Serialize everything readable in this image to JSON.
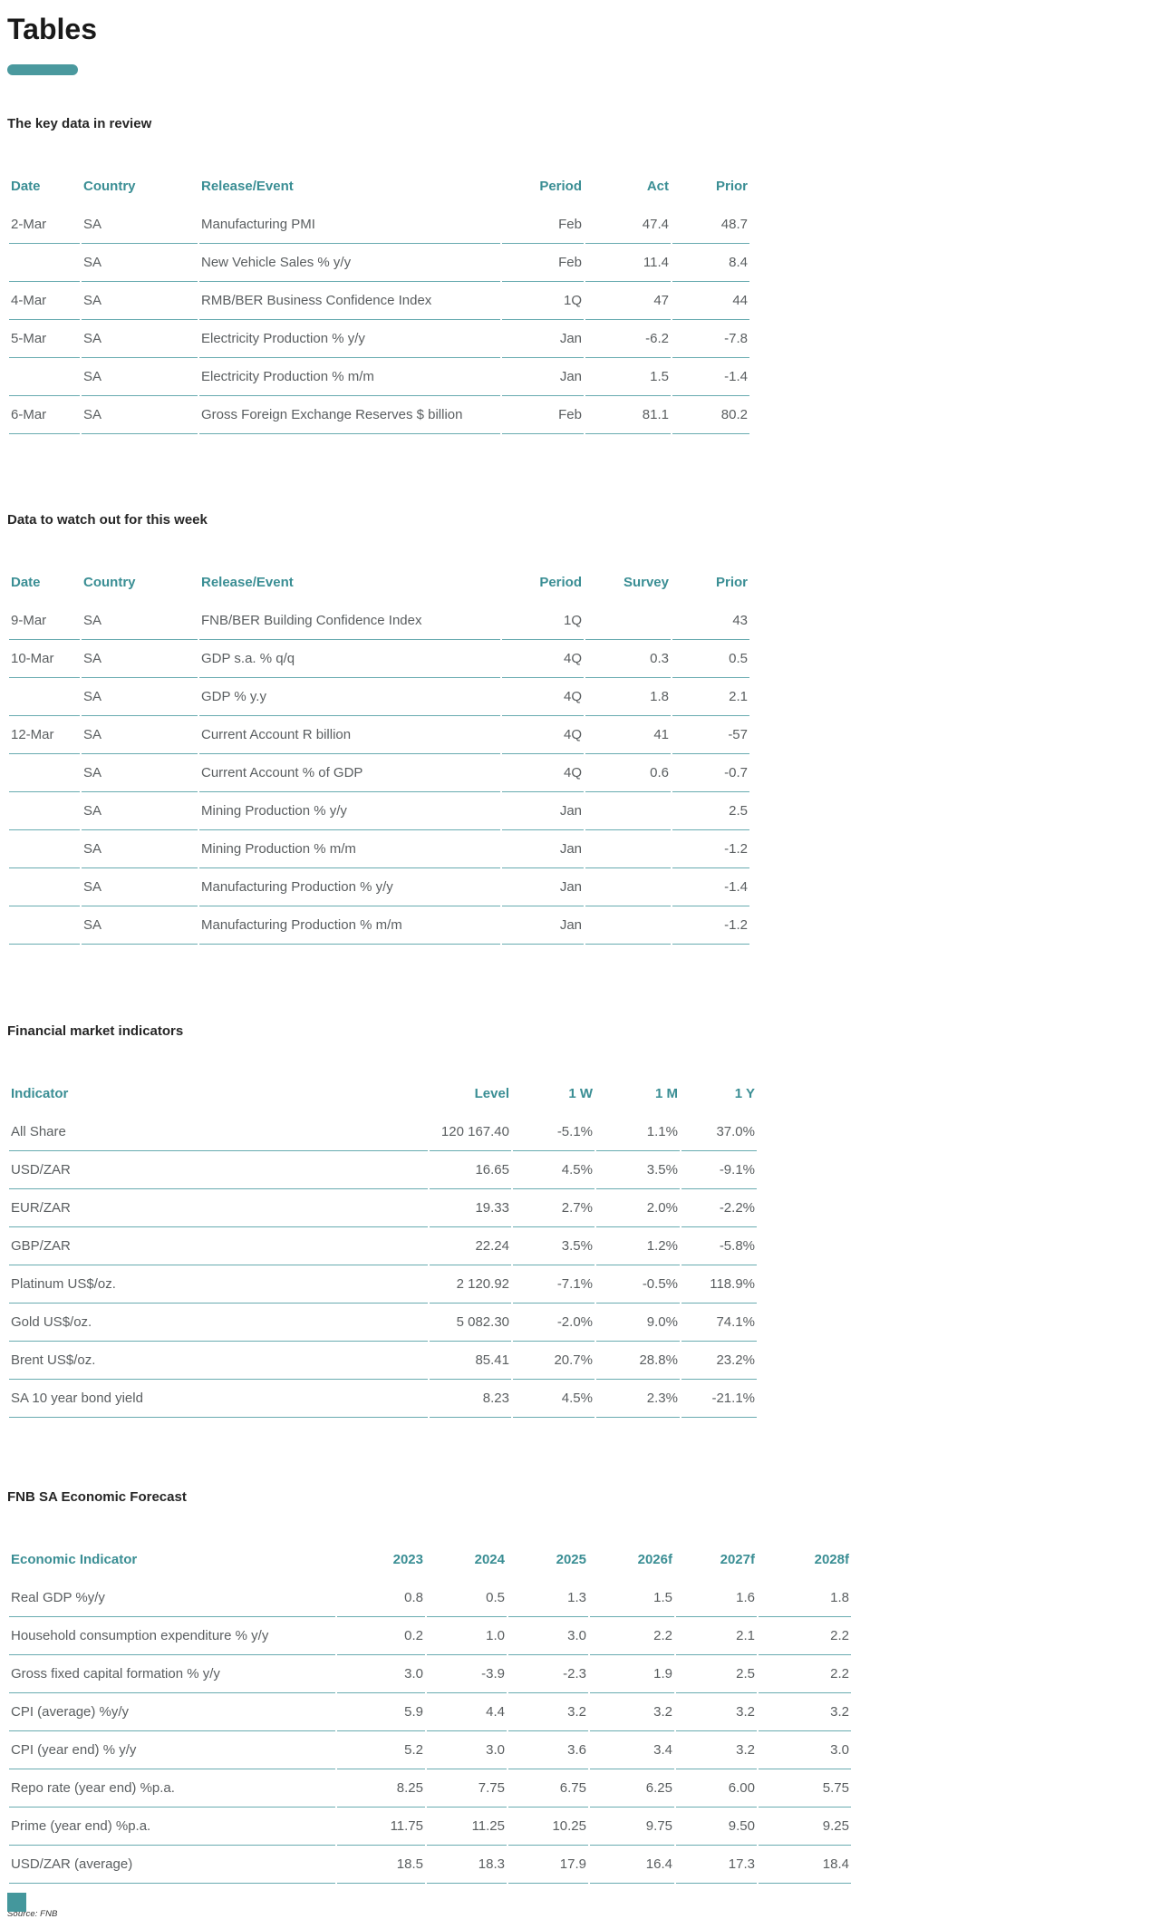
{
  "page": {
    "title": "Tables",
    "source_note": "Source: FNB"
  },
  "colors": {
    "accent_teal": "#3a8e94",
    "row_border_teal": "#68abb0",
    "pill_teal": "#4a999e",
    "body_text": "#5a5e60"
  },
  "sections": [
    {
      "heading": "The key data in review",
      "columns": [
        "Date",
        "Country",
        "Release/Event",
        "Period",
        "Act",
        "Prior"
      ],
      "rows": [
        [
          "2-Mar",
          "SA",
          "Manufacturing PMI",
          "Feb",
          "47.4",
          "48.7"
        ],
        [
          "",
          "SA",
          "New Vehicle Sales % y/y",
          "Feb",
          "11.4",
          "8.4"
        ],
        [
          "4-Mar",
          "SA",
          "RMB/BER Business Confidence Index",
          "1Q",
          "47",
          "44"
        ],
        [
          "5-Mar",
          "SA",
          "Electricity Production % y/y",
          "Jan",
          "-6.2",
          "-7.8"
        ],
        [
          "",
          "SA",
          "Electricity Production % m/m",
          "Jan",
          "1.5",
          "-1.4"
        ],
        [
          "6-Mar",
          "SA",
          "Gross Foreign Exchange Reserves $ billion",
          "Feb",
          "81.1",
          "80.2"
        ]
      ]
    },
    {
      "heading": "Data to watch out for this week",
      "columns": [
        "Date",
        "Country",
        "Release/Event",
        "Period",
        "Survey",
        "Prior"
      ],
      "rows": [
        [
          "9-Mar",
          "SA",
          "FNB/BER Building Confidence Index",
          "1Q",
          "",
          "43"
        ],
        [
          "10-Mar",
          "SA",
          "GDP s.a. % q/q",
          "4Q",
          "0.3",
          "0.5"
        ],
        [
          "",
          "SA",
          "GDP % y.y",
          "4Q",
          "1.8",
          "2.1"
        ],
        [
          "12-Mar",
          "SA",
          "Current Account R billion",
          "4Q",
          "41",
          "-57"
        ],
        [
          "",
          "SA",
          "Current Account % of GDP",
          "4Q",
          "0.6",
          "-0.7"
        ],
        [
          "",
          "SA",
          "Mining Production % y/y",
          "Jan",
          "",
          "2.5"
        ],
        [
          "",
          "SA",
          "Mining Production % m/m",
          "Jan",
          "",
          "-1.2"
        ],
        [
          "",
          "SA",
          "Manufacturing Production % y/y",
          "Jan",
          "",
          "-1.4"
        ],
        [
          "",
          "SA",
          "Manufacturing Production % m/m",
          "Jan",
          "",
          "-1.2"
        ]
      ]
    },
    {
      "heading": "Financial market indicators",
      "columns": [
        "Indicator",
        "Level",
        "1 W",
        "1 M",
        "1 Y"
      ],
      "rows": [
        [
          "All Share",
          "120 167.40",
          "-5.1%",
          "1.1%",
          "37.0%"
        ],
        [
          "USD/ZAR",
          "16.65",
          "4.5%",
          "3.5%",
          "-9.1%"
        ],
        [
          "EUR/ZAR",
          "19.33",
          "2.7%",
          "2.0%",
          "-2.2%"
        ],
        [
          "GBP/ZAR",
          "22.24",
          "3.5%",
          "1.2%",
          "-5.8%"
        ],
        [
          "Platinum US$/oz.",
          "2 120.92",
          "-7.1%",
          "-0.5%",
          "118.9%"
        ],
        [
          "Gold US$/oz.",
          "5 082.30",
          "-2.0%",
          "9.0%",
          "74.1%"
        ],
        [
          "Brent US$/oz.",
          "85.41",
          "20.7%",
          "28.8%",
          "23.2%"
        ],
        [
          "SA 10 year bond yield",
          "8.23",
          "4.5%",
          "2.3%",
          "-21.1%"
        ]
      ]
    },
    {
      "heading": "FNB SA Economic Forecast",
      "columns": [
        "Economic Indicator",
        "2023",
        "2024",
        "2025",
        "2026f",
        "2027f",
        "2028f"
      ],
      "rows": [
        [
          "Real GDP %y/y",
          "0.8",
          "0.5",
          "1.3",
          "1.5",
          "1.6",
          "1.8"
        ],
        [
          "Household consumption expenditure % y/y",
          "0.2",
          "1.0",
          "3.0",
          "2.2",
          "2.1",
          "2.2"
        ],
        [
          "Gross fixed capital formation % y/y",
          "3.0",
          "-3.9",
          "-2.3",
          "1.9",
          "2.5",
          "2.2"
        ],
        [
          "CPI (average) %y/y",
          "5.9",
          "4.4",
          "3.2",
          "3.2",
          "3.2",
          "3.2"
        ],
        [
          "CPI (year end) % y/y",
          "5.2",
          "3.0",
          "3.6",
          "3.4",
          "3.2",
          "3.0"
        ],
        [
          "Repo rate (year end) %p.a.",
          "8.25",
          "7.75",
          "6.75",
          "6.25",
          "6.00",
          "5.75"
        ],
        [
          "Prime (year end) %p.a.",
          "11.75",
          "11.25",
          "10.25",
          "9.75",
          "9.50",
          "9.25"
        ],
        [
          "USD/ZAR (average)",
          "18.5",
          "18.3",
          "17.9",
          "16.4",
          "17.3",
          "18.4"
        ]
      ]
    }
  ]
}
